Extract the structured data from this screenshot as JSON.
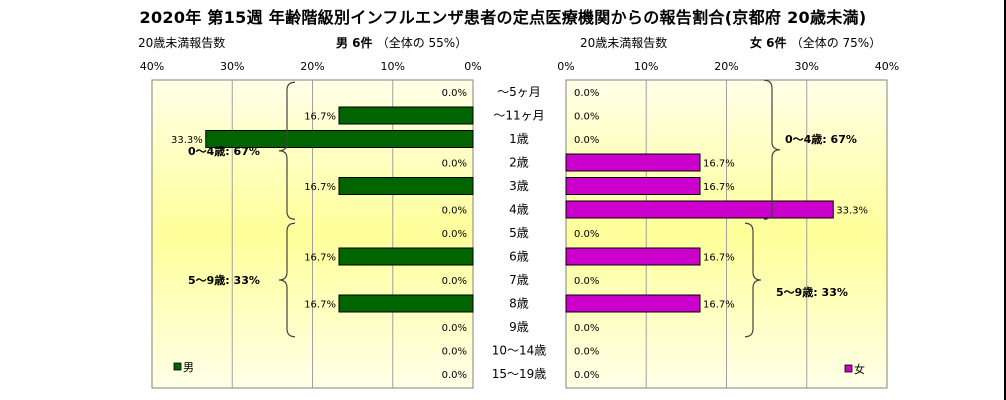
{
  "title": "2020年 第15週 年齢階級別インフルエンザ患者の定点医療機関からの報告割合(京都府 20歳未満)",
  "left_panel_label": "20歳未満報告数",
  "right_panel_label": "20歳未満報告数",
  "male_header": "男 6件",
  "male_share": "（全体の 55%）",
  "female_header": "女 6件",
  "female_share": "（全体の 75%）",
  "colors": {
    "male": "#006400",
    "female": "#cc00cc",
    "plot_bg_top": "#ffffe8",
    "plot_bg_bottom": "#ffff9a"
  },
  "chart_data": [
    {
      "type": "bar",
      "orientation": "horizontal-reversed",
      "series": [
        {
          "name": "男",
          "values": [
            0.0,
            16.7,
            33.3,
            0.0,
            16.7,
            0.0,
            0.0,
            16.7,
            0.0,
            16.7,
            0.0,
            0.0,
            0.0
          ]
        }
      ],
      "value_labels": [
        "0.0%",
        "16.7%",
        "33.3%",
        "0.0%",
        "16.7%",
        "0.0%",
        "0.0%",
        "16.7%",
        "0.0%",
        "16.7%",
        "0.0%",
        "0.0%",
        "0.0%"
      ],
      "xlim": [
        0,
        40
      ],
      "xticks": [
        "40%",
        "30%",
        "20%",
        "10%",
        "0%"
      ],
      "legend": "男",
      "legend_position": "bottom-left",
      "group_annotations": [
        "0～4歳: 67%",
        "5～9歳: 33%"
      ]
    },
    {
      "type": "bar",
      "orientation": "horizontal",
      "series": [
        {
          "name": "女",
          "values": [
            0.0,
            0.0,
            0.0,
            16.7,
            16.7,
            33.3,
            0.0,
            16.7,
            0.0,
            16.7,
            0.0,
            0.0,
            0.0
          ]
        }
      ],
      "value_labels": [
        "0.0%",
        "0.0%",
        "0.0%",
        "16.7%",
        "16.7%",
        "33.3%",
        "0.0%",
        "16.7%",
        "0.0%",
        "16.7%",
        "0.0%",
        "0.0%",
        "0.0%"
      ],
      "xlim": [
        0,
        40
      ],
      "xticks": [
        "0%",
        "10%",
        "20%",
        "30%",
        "40%"
      ],
      "legend": "女",
      "legend_position": "bottom-right",
      "group_annotations": [
        "0～4歳: 67%",
        "5～9歳: 33%"
      ]
    }
  ],
  "categories": [
    "～5ヶ月",
    "～11ヶ月",
    "1歳",
    "2歳",
    "3歳",
    "4歳",
    "5歳",
    "6歳",
    "7歳",
    "8歳",
    "9歳",
    "10～14歳",
    "15～19歳"
  ]
}
